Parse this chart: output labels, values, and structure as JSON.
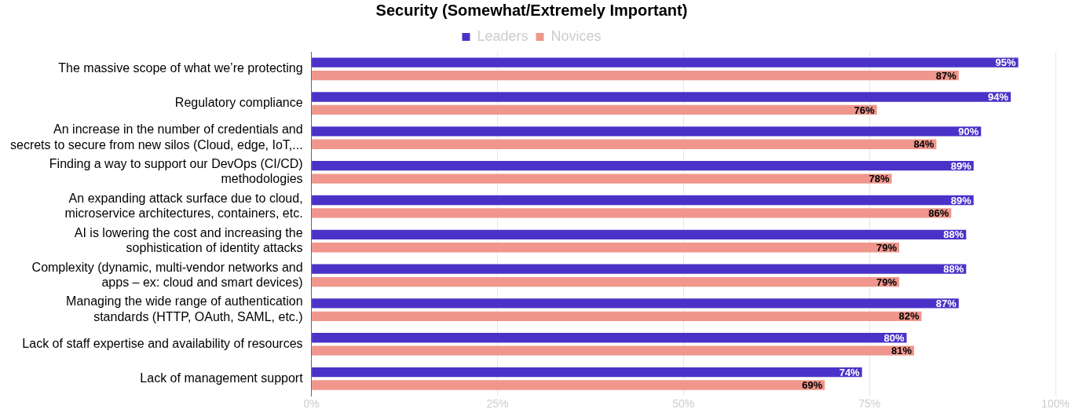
{
  "chart_data": {
    "type": "bar",
    "orientation": "horizontal",
    "title": "Security (Somewhat/Extremely Important)",
    "categories": [
      "The massive scope of what we’re protecting",
      "Regulatory compliance",
      "An increase in the number of credentials and\nsecrets to secure from new silos (Cloud, edge, IoT,...",
      "Finding a way to support our DevOps (CI/CD)\nmethodologies",
      "An expanding attack surface due to cloud,\nmicroservice architectures, containers, etc.",
      "AI is lowering the cost and increasing the\nsophistication of identity attacks",
      "Complexity (dynamic, multi-vendor networks and\napps – ex: cloud and smart devices)",
      "Managing the wide range of authentication\nstandards (HTTP, OAuth, SAML, etc.)",
      "Lack of staff expertise and availability of resources",
      "Lack of management support"
    ],
    "series": [
      {
        "name": "Leaders",
        "color": "#4a32c8",
        "values": [
          95,
          94,
          90,
          89,
          89,
          88,
          88,
          87,
          80,
          74
        ],
        "value_labels": [
          "95%",
          "94%",
          "90%",
          "89%",
          "89%",
          "88%",
          "88%",
          "87%",
          "80%",
          "74%"
        ]
      },
      {
        "name": "Novices",
        "color": "#f0968c",
        "values": [
          87,
          76,
          84,
          78,
          86,
          79,
          79,
          82,
          81,
          69
        ],
        "value_labels": [
          "87%",
          "76%",
          "84%",
          "78%",
          "86%",
          "79%",
          "79%",
          "82%",
          "81%",
          "69%"
        ]
      }
    ],
    "xlim": [
      0,
      100
    ],
    "xticks": [
      {
        "value": 0,
        "label": "0%"
      },
      {
        "value": 25,
        "label": "25%"
      },
      {
        "value": 50,
        "label": "50%"
      },
      {
        "value": 75,
        "label": "75%"
      },
      {
        "value": 100,
        "label": "100%"
      }
    ],
    "grid": "x",
    "legend": "top"
  }
}
